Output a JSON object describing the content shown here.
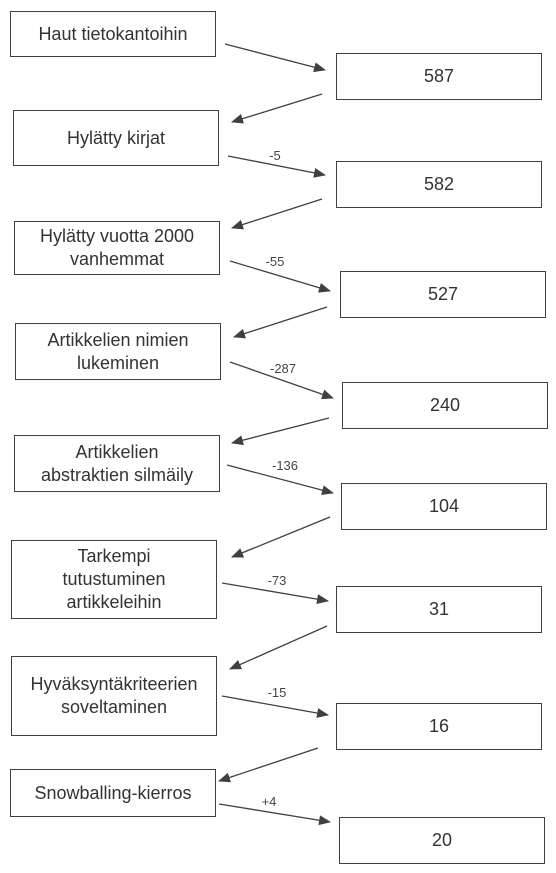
{
  "steps": [
    {
      "label": "Haut tietokantoihin",
      "count": "587",
      "delta": ""
    },
    {
      "label": "Hylätty kirjat",
      "count": "582",
      "delta": "-5"
    },
    {
      "label": "Hylätty vuotta 2000\nvanhemmat",
      "count": "527",
      "delta": "-55"
    },
    {
      "label": "Artikkelien nimien\nlukeminen",
      "count": "240",
      "delta": "-287"
    },
    {
      "label": "Artikkelien\nabstraktien silmäily",
      "count": "104",
      "delta": "-136"
    },
    {
      "label": "Tarkempi\ntutustuminen\nartikkeleihin",
      "count": "31",
      "delta": "-73"
    },
    {
      "label": "Hyväksyntäkriteerien\nsoveltaminen",
      "count": "16",
      "delta": "-15"
    },
    {
      "label": "Snowballing-kierros",
      "count": "20",
      "delta": "+4"
    }
  ],
  "colors": {
    "line": "#404040",
    "text": "#333333"
  }
}
